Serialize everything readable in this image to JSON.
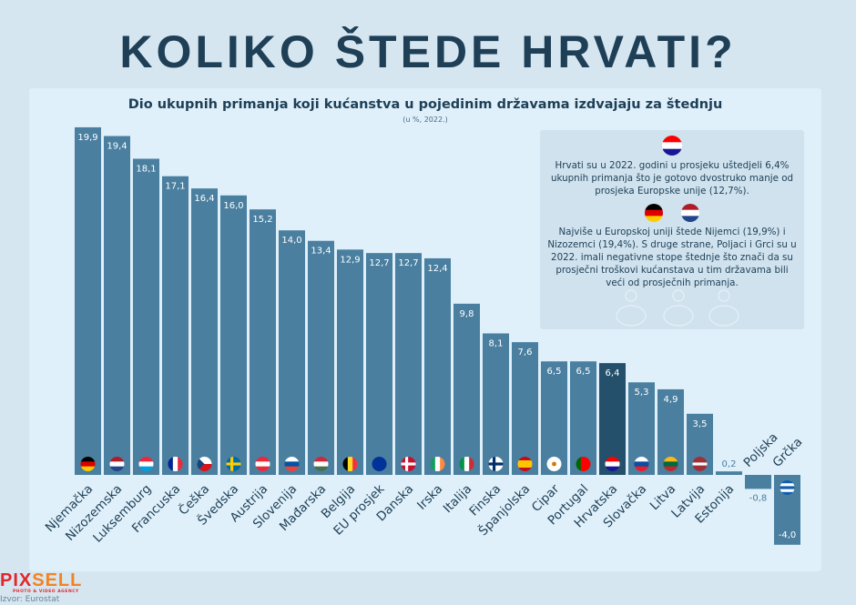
{
  "title": "KOLIKO ŠTEDE HRVATI?",
  "colors": {
    "bar": "#4a7fa0",
    "highlight": "#24506b",
    "text": "#1e3f56",
    "panel": "#dff0fa",
    "info_box": "#cfe2ee"
  },
  "chart_data": {
    "type": "bar",
    "title": "Dio ukupnih primanja koji kućanstva u pojedinim državama izdvajaju za štednju",
    "subtitle": "(u %, 2022.)",
    "categories": [
      "Njemačka",
      "Nizozemska",
      "Luksemburg",
      "Francuska",
      "Češka",
      "Švedska",
      "Austrija",
      "Slovenija",
      "Mađarska",
      "Belgija",
      "EU prosjek",
      "Danska",
      "Irska",
      "Italija",
      "Finska",
      "Španjolska",
      "Cipar",
      "Portugal",
      "Hrvatska",
      "Slovačka",
      "Litva",
      "Latvija",
      "Estonija",
      "Poljska",
      "Grčka"
    ],
    "values": [
      19.9,
      19.4,
      18.1,
      17.1,
      16.4,
      16.0,
      15.2,
      14.0,
      13.4,
      12.9,
      12.7,
      12.7,
      12.4,
      9.8,
      8.1,
      7.6,
      6.5,
      6.5,
      6.4,
      5.3,
      4.9,
      3.5,
      0.2,
      -0.8,
      -4.0
    ],
    "value_labels": [
      "19,9",
      "19,4",
      "18,1",
      "17,1",
      "16,4",
      "16,0",
      "15,2",
      "14,0",
      "13,4",
      "12,9",
      "12,7",
      "12,7",
      "12,4",
      "9,8",
      "8,1",
      "7,6",
      "6,5",
      "6,5",
      "6,4",
      "5,3",
      "4,9",
      "3,5",
      "0,2",
      "-0,8",
      "-4,0"
    ],
    "highlight": "Hrvatska",
    "xlabel": "",
    "ylabel": "",
    "grid": false,
    "flags": [
      {
        "t": "h",
        "c": [
          "#000000",
          "#dd0000",
          "#ffcc00"
        ]
      },
      {
        "t": "h",
        "c": [
          "#ae1c28",
          "#ffffff",
          "#21468b"
        ]
      },
      {
        "t": "h",
        "c": [
          "#ed2939",
          "#ffffff",
          "#00a1de"
        ]
      },
      {
        "t": "v",
        "c": [
          "#002395",
          "#ffffff",
          "#ed2939"
        ]
      },
      {
        "t": "h",
        "c": [
          "#ffffff",
          "#d7141a"
        ],
        "tri": "#11457e"
      },
      {
        "t": "x",
        "c": [
          "#006aa7",
          "#fecc00"
        ]
      },
      {
        "t": "h",
        "c": [
          "#ed2939",
          "#ffffff",
          "#ed2939"
        ]
      },
      {
        "t": "h",
        "c": [
          "#ffffff",
          "#0055a4",
          "#ef4135"
        ]
      },
      {
        "t": "h",
        "c": [
          "#ce2939",
          "#ffffff",
          "#477050"
        ]
      },
      {
        "t": "v",
        "c": [
          "#000000",
          "#fdda24",
          "#ef3340"
        ]
      },
      {
        "t": "h",
        "c": [
          "#003399"
        ]
      },
      {
        "t": "x",
        "c": [
          "#c8102e",
          "#ffffff"
        ]
      },
      {
        "t": "v",
        "c": [
          "#169b62",
          "#ffffff",
          "#ff883e"
        ]
      },
      {
        "t": "v",
        "c": [
          "#009246",
          "#ffffff",
          "#ce2b37"
        ]
      },
      {
        "t": "x",
        "c": [
          "#ffffff",
          "#002f6c"
        ]
      },
      {
        "t": "h",
        "c": [
          "#c60b1e",
          "#ffc400",
          "#ffc400",
          "#c60b1e"
        ]
      },
      {
        "t": "h",
        "c": [
          "#ffffff"
        ],
        "dot": "#d57800"
      },
      {
        "t": "v",
        "c": [
          "#006600",
          "#ff0000",
          "#ff0000"
        ]
      },
      {
        "t": "h",
        "c": [
          "#ff0000",
          "#ffffff",
          "#171796"
        ],
        "dot": "#ffffff"
      },
      {
        "t": "h",
        "c": [
          "#ffffff",
          "#0b4ea2",
          "#ee1c25"
        ]
      },
      {
        "t": "h",
        "c": [
          "#fdb913",
          "#006a44",
          "#c1272d"
        ]
      },
      {
        "t": "h",
        "c": [
          "#9e3039",
          "#9e3039",
          "#ffffff",
          "#9e3039",
          "#9e3039"
        ]
      },
      null,
      null,
      {
        "t": "h",
        "c": [
          "#0d5eaf",
          "#ffffff",
          "#0d5eaf",
          "#ffffff",
          "#0d5eaf"
        ]
      }
    ]
  },
  "info": {
    "p1": "Hrvati su u 2022. godini u prosjeku uštedjeli 6,4% ukupnih primanja što je gotovo dvostruko manje od prosjeka Europske unije (12,7%).",
    "p2": "Najviše u Europskoj uniji štede Nijemci (19,9%) i Nizozemci (19,4%). S druge strane, Poljaci i Grci su u 2022. imali negativne stope štednje što znači da su prosječni troškovi kućanstava u tim državama bili veći od prosječnih primanja."
  },
  "logo": {
    "name_a": "PIX",
    "name_b": "SELL",
    "tagline": "PHOTO & VIDEO AGENCY"
  },
  "source": "Izvor: Eurostat"
}
